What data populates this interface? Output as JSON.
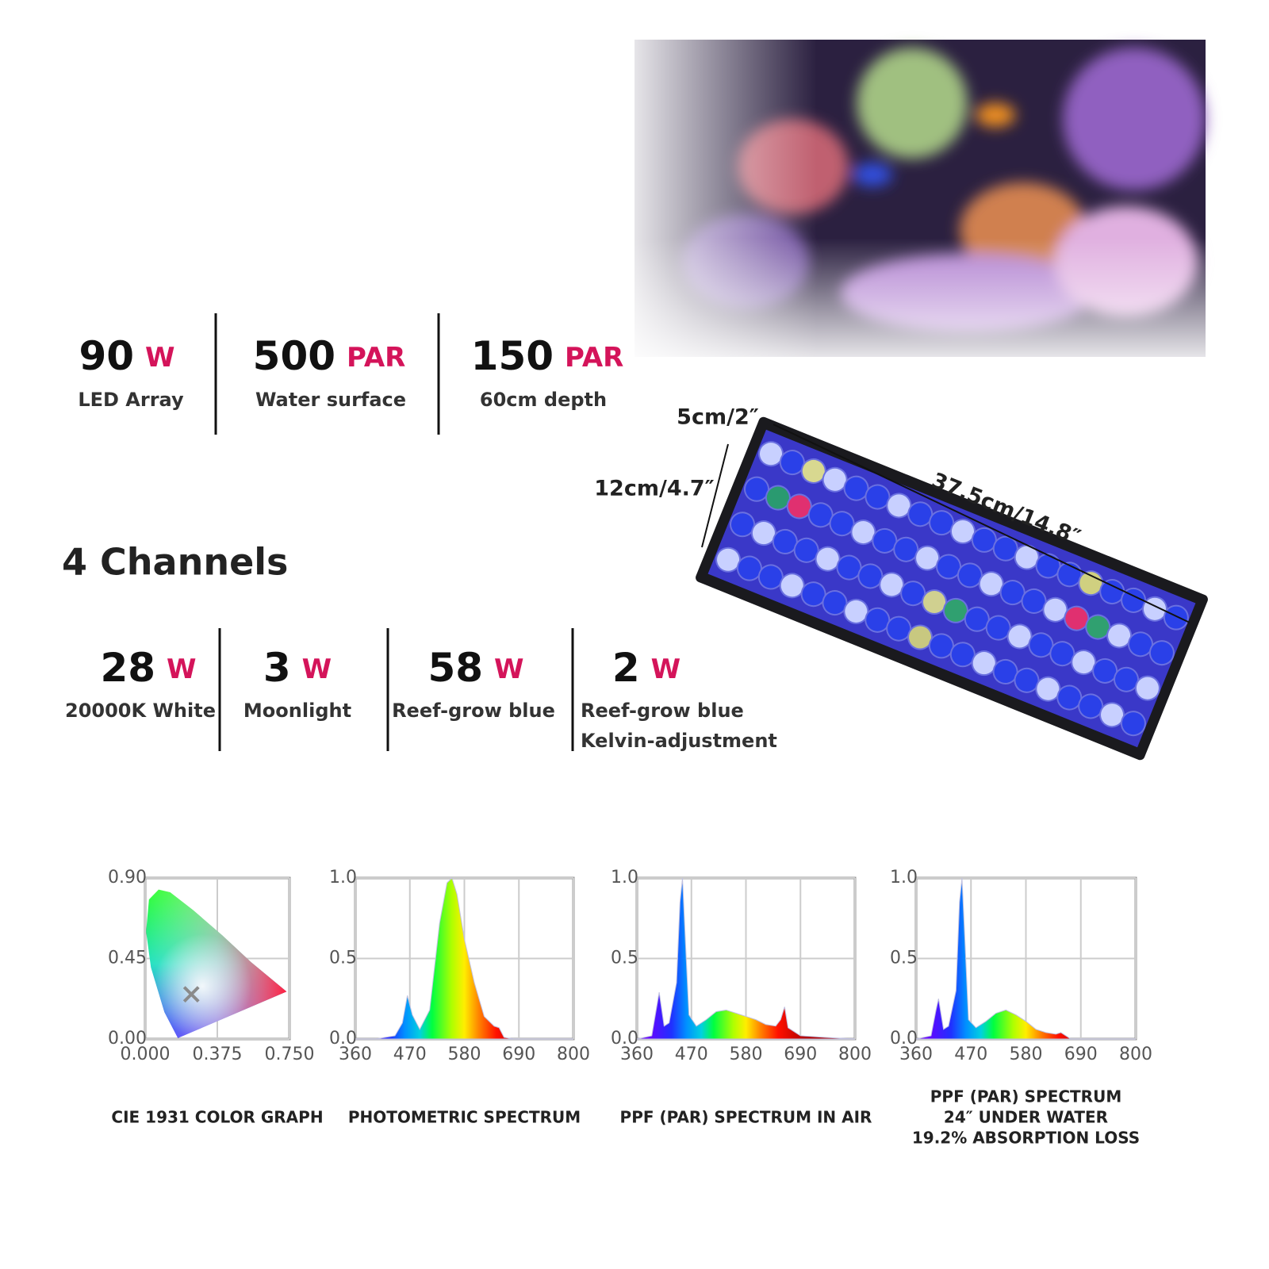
{
  "specs": [
    {
      "value": 90,
      "unit": "W",
      "label": "LED Array"
    },
    {
      "value": 500,
      "unit": "PAR",
      "label": "Water surface"
    },
    {
      "value": 150,
      "unit": "PAR",
      "label": "60cm depth"
    }
  ],
  "dimensions": {
    "depth": "5cm/2″",
    "width": "12cm/4.7″",
    "length": "37.5cm/14.8″"
  },
  "channels": {
    "heading": "4 Channels",
    "items": [
      {
        "value": 28,
        "unit": "W",
        "label": [
          "20000K White"
        ]
      },
      {
        "value": 3,
        "unit": "W",
        "label": [
          "Moonlight"
        ]
      },
      {
        "value": 58,
        "unit": "W",
        "label": [
          "Reef-grow blue"
        ]
      },
      {
        "value": 2,
        "unit": "W",
        "label": [
          "Reef-grow blue",
          "Kelvin-adjustment"
        ]
      }
    ]
  },
  "chart_data": [
    {
      "type": "scatter",
      "title": [
        "CIE 1931 COLOR GRAPH"
      ],
      "x": [
        0.24
      ],
      "y": [
        0.25
      ],
      "color": "#8a8a8a",
      "xlim": [
        0,
        0.75
      ],
      "ylim": [
        0,
        0.9
      ],
      "xticks": [
        {
          "value": 0,
          "label": "0.000"
        },
        {
          "value": 0.375,
          "label": "0.375"
        },
        {
          "value": 0.75,
          "label": "0.750"
        }
      ],
      "yticks": [
        {
          "value": 0,
          "label": "0.00"
        },
        {
          "value": 0.45,
          "label": "0.45"
        },
        {
          "value": 0.9,
          "label": "0.90"
        }
      ],
      "grid": true
    },
    {
      "type": "area",
      "title": [
        "PHOTOMETRIC SPECTRUM"
      ],
      "x": [
        360,
        400,
        440,
        455,
        465,
        475,
        490,
        510,
        530,
        545,
        555,
        565,
        580,
        600,
        620,
        640,
        650,
        660,
        680,
        800
      ],
      "y": [
        0,
        0,
        0.02,
        0.1,
        0.27,
        0.15,
        0.06,
        0.18,
        0.72,
        0.97,
        1.0,
        0.9,
        0.62,
        0.35,
        0.14,
        0.08,
        0.07,
        0.01,
        0,
        0
      ],
      "xlim": [
        360,
        800
      ],
      "ylim": [
        0,
        1
      ],
      "xticks": [
        360,
        470,
        580,
        690,
        800
      ],
      "yticks": [
        {
          "value": 0,
          "label": "0.0"
        },
        0.5,
        {
          "value": 1,
          "label": "1.0"
        }
      ],
      "grid": true
    },
    {
      "type": "area",
      "title": [
        "PPF (PAR) SPECTRUM IN AIR"
      ],
      "x": [
        360,
        390,
        400,
        405,
        415,
        425,
        440,
        447,
        452,
        458,
        465,
        480,
        500,
        520,
        540,
        560,
        580,
        600,
        620,
        640,
        650,
        658,
        665,
        690,
        740,
        800
      ],
      "y": [
        0,
        0.02,
        0.2,
        0.29,
        0.08,
        0.1,
        0.35,
        0.85,
        1.0,
        0.6,
        0.15,
        0.08,
        0.12,
        0.17,
        0.18,
        0.16,
        0.14,
        0.12,
        0.09,
        0.08,
        0.12,
        0.2,
        0.07,
        0.02,
        0.01,
        0
      ],
      "xlim": [
        360,
        800
      ],
      "ylim": [
        0,
        1
      ],
      "xticks": [
        360,
        470,
        580,
        690,
        800
      ],
      "yticks": [
        {
          "value": 0,
          "label": "0.0"
        },
        0.5,
        {
          "value": 1,
          "label": "1.0"
        }
      ],
      "grid": true
    },
    {
      "type": "area",
      "title": [
        "PPF (PAR) SPECTRUM",
        "24″  UNDER WATER",
        "19.2% ABSORPTION LOSS"
      ],
      "x": [
        360,
        390,
        400,
        405,
        415,
        425,
        440,
        447,
        452,
        458,
        465,
        480,
        500,
        520,
        540,
        560,
        580,
        600,
        620,
        640,
        650,
        660,
        670,
        800
      ],
      "y": [
        0,
        0.02,
        0.18,
        0.25,
        0.06,
        0.08,
        0.3,
        0.85,
        1.0,
        0.6,
        0.12,
        0.07,
        0.11,
        0.16,
        0.18,
        0.15,
        0.11,
        0.06,
        0.04,
        0.03,
        0.04,
        0.02,
        0,
        0
      ],
      "xlim": [
        360,
        800
      ],
      "ylim": [
        0,
        1
      ],
      "xticks": [
        360,
        470,
        580,
        690,
        800
      ],
      "yticks": [
        {
          "value": 0,
          "label": "0.0"
        },
        0.5,
        {
          "value": 1,
          "label": "1.0"
        }
      ],
      "grid": true
    }
  ]
}
